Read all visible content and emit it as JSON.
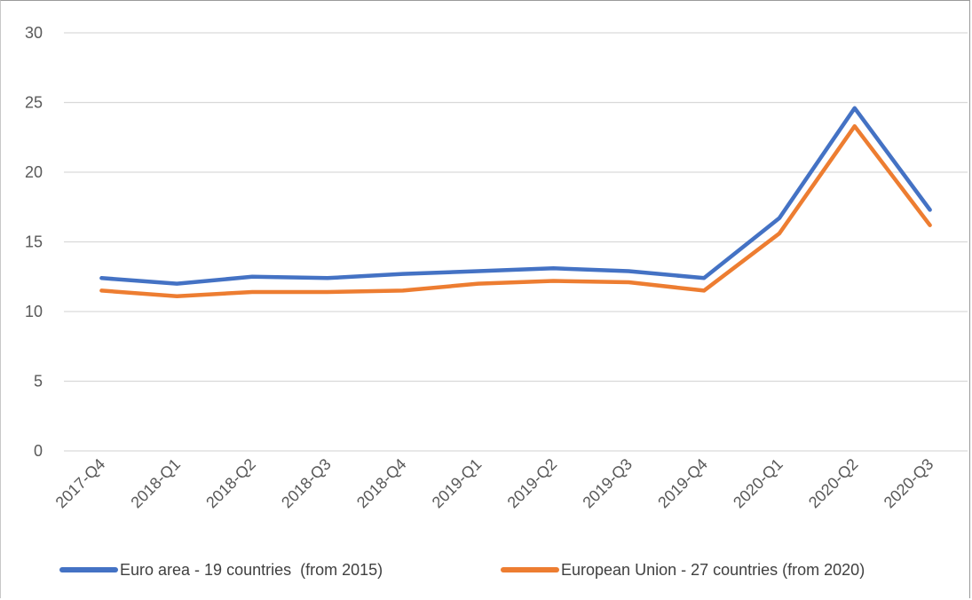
{
  "chart_data": {
    "type": "line",
    "categories": [
      "2017-Q4",
      "2018-Q1",
      "2018-Q2",
      "2018-Q3",
      "2018-Q4",
      "2019-Q1",
      "2019-Q2",
      "2019-Q3",
      "2019-Q4",
      "2020-Q1",
      "2020-Q2",
      "2020-Q3"
    ],
    "series": [
      {
        "name": "Euro area - 19 countries  (from 2015)",
        "color": "#4472C4",
        "values": [
          12.4,
          12.0,
          12.5,
          12.4,
          12.7,
          12.9,
          13.1,
          12.9,
          12.4,
          16.7,
          24.6,
          17.3
        ]
      },
      {
        "name": "European Union - 27 countries (from 2020)",
        "color": "#ED7D31",
        "values": [
          11.5,
          11.1,
          11.4,
          11.4,
          11.5,
          12.0,
          12.2,
          12.1,
          11.5,
          15.6,
          23.3,
          16.2
        ]
      }
    ],
    "ylim": [
      0,
      30
    ],
    "yticks": [
      0,
      5,
      10,
      15,
      20,
      25,
      30
    ],
    "grid": true,
    "legend_position": "bottom",
    "title": "",
    "xlabel": "",
    "ylabel": ""
  }
}
